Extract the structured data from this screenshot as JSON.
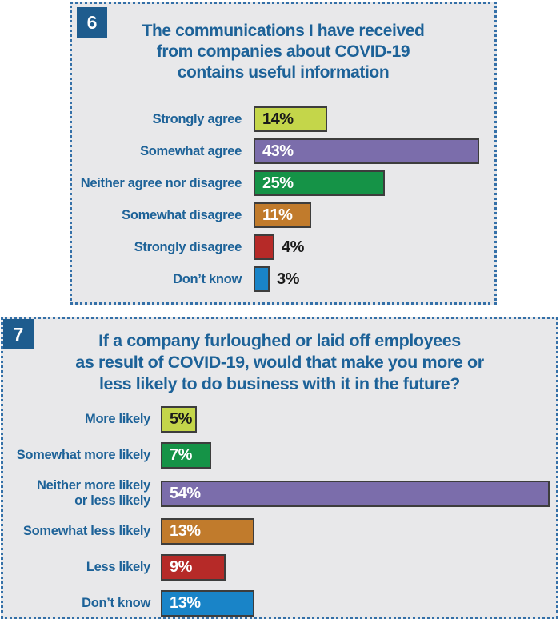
{
  "chart_data": [
    {
      "type": "bar",
      "orientation": "horizontal",
      "panel_badge": "6",
      "title": "The communications I have received from companies about COVID-19 contains useful information",
      "title_lines": [
        "The communications I have received",
        "from companies about COVID-19",
        "contains useful information"
      ],
      "categories": [
        "Strongly agree",
        "Somewhat agree",
        "Neither agree nor disagree",
        "Somewhat disagree",
        "Strongly disagree",
        "Don’t know"
      ],
      "category_display": [
        "Strongly agree",
        "Somewhat agree",
        "Neither agree nor disagree",
        "Somewhat disagree",
        "Strongly disagree",
        "Don’t know"
      ],
      "values": [
        14,
        43,
        25,
        11,
        4,
        3
      ],
      "value_labels": [
        "14%",
        "43%",
        "25%",
        "11%",
        "4%",
        "3%"
      ],
      "bar_colors": [
        "#c4d64a",
        "#7b6dab",
        "#159347",
        "#c17b2c",
        "#b62a28",
        "#1984c8"
      ],
      "value_label_inside": [
        true,
        true,
        true,
        true,
        false,
        false
      ],
      "value_label_colors": [
        "#1a1a1a",
        "#ffffff",
        "#ffffff",
        "#ffffff",
        "#1a1a1a",
        "#1a1a1a"
      ],
      "xlim": [
        0,
        46
      ],
      "grid": false,
      "legend": false,
      "accent_colors": {
        "panel_background": "#e8e8ea",
        "border_blue": "#3470a8",
        "text_blue": "#1d6298",
        "badge_blue": "#1e5c8e"
      }
    },
    {
      "type": "bar",
      "orientation": "horizontal",
      "panel_badge": "7",
      "title": "If a company furloughed or laid off employees as result of COVID-19, would that make you more or less likely to do business with it in the future?",
      "title_lines": [
        "If a company furloughed or laid off employees",
        "as result of COVID-19, would that make you more or",
        "less likely to do business with it in the future?"
      ],
      "categories": [
        "More likely",
        "Somewhat more likely",
        "Neither more likely or less likely",
        "Somewhat less likely",
        "Less likely",
        "Don’t know"
      ],
      "category_display": [
        "More likely",
        "Somewhat more likely",
        "Neither more likely\nor less likely",
        "Somewhat less likely",
        "Less likely",
        "Don’t know"
      ],
      "values": [
        5,
        7,
        54,
        13,
        9,
        13
      ],
      "value_labels": [
        "5%",
        "7%",
        "54%",
        "13%",
        "9%",
        "13%"
      ],
      "bar_colors": [
        "#c4d64a",
        "#159347",
        "#7b6dab",
        "#c17b2c",
        "#b62a28",
        "#1984c8"
      ],
      "value_label_inside": [
        true,
        true,
        true,
        true,
        true,
        true
      ],
      "value_label_colors": [
        "#1a1a1a",
        "#ffffff",
        "#ffffff",
        "#ffffff",
        "#ffffff",
        "#ffffff"
      ],
      "xlim": [
        0,
        55
      ],
      "grid": false,
      "legend": false,
      "accent_colors": {
        "panel_background": "#e8e8ea",
        "border_blue": "#3470a8",
        "text_blue": "#1d6298",
        "badge_blue": "#1e5c8e"
      }
    }
  ]
}
